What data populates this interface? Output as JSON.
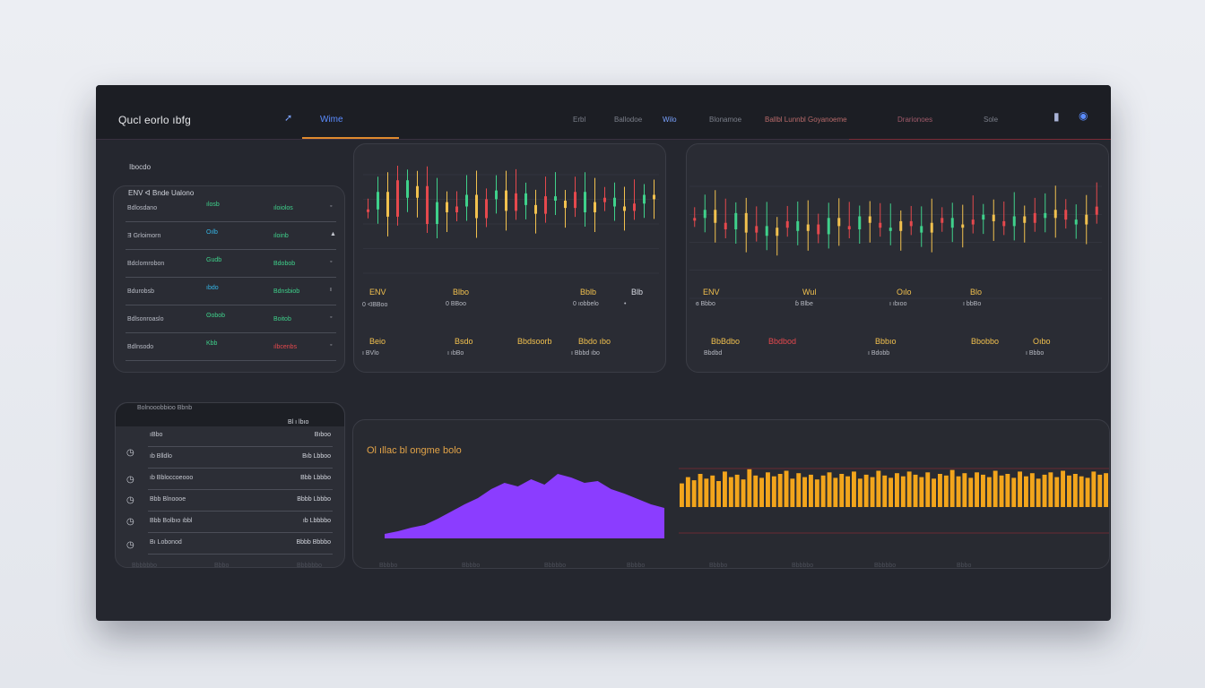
{
  "header": {
    "app_title": "Qucl eorlo ıbfg",
    "active_tab": "Wime",
    "nav_icon": "arrow-icon",
    "links": [
      "Erbl",
      "Ballodoe",
      "Wilo",
      "Blonamoe",
      "Ballbl Lunnbl Goyanoeme",
      "Drarionoes",
      "Sole"
    ],
    "icons": [
      "pin-icon",
      "globe-icon"
    ]
  },
  "watchlist": {
    "section_label": "Ibocdo",
    "header": "ENV ᐊ Bnde Ualono",
    "rows": [
      {
        "name": "Bdlosdano",
        "value": "ılosb",
        "change": "ıloiolos",
        "info": "◦"
      },
      {
        "name": "Ǝ Grloimorn",
        "value": "Oılb",
        "change": "ıloinb",
        "info": "▲"
      },
      {
        "name": "Bdclomrobon",
        "value": "Gudb",
        "change": "Bdobob",
        "info": "◦"
      },
      {
        "name": "Bdurobsb",
        "value": "ıbdo",
        "change": "Bdnsbiob",
        "info": "ı"
      },
      {
        "name": "Bdlsonroaslo",
        "value": "ʘobob",
        "change": "Boitob",
        "info": "◦"
      },
      {
        "name": "Bdlnsodo",
        "value": "Kbb",
        "change": "ılbcenbs",
        "info": "◦"
      }
    ],
    "colors": {
      "positive": "#3fd18b",
      "negative": "#e5484d",
      "neutral": "#35b7e8"
    }
  },
  "chart_left": {
    "stats_top": [
      {
        "label": "ENV",
        "sub": "0 ᐊBBoo",
        "color": "#f2c14e"
      },
      {
        "label": "Blbo",
        "sub": "0 BBoo",
        "color": "#f2c14e"
      },
      {
        "label": "Bblb",
        "sub": "0 ıobbelo",
        "color": "#f2c14e"
      },
      {
        "label": "Blb",
        "sub": "•",
        "color": "#d7dae2"
      }
    ],
    "stats_bottom": [
      {
        "label": "Beio",
        "sub": "ı BVlo",
        "color": "#f2c14e"
      },
      {
        "label": "Bsdo",
        "sub": "ı ıbBo",
        "color": "#f2c14e"
      },
      {
        "label": "Bbdsoorb",
        "sub": "",
        "color": "#f2c14e"
      },
      {
        "label": "Bbdo ıbo",
        "sub": "ı Bbbd ıbo",
        "color": "#f2c14e"
      }
    ]
  },
  "chart_right": {
    "stats_top": [
      {
        "label": "ENV",
        "sub": "ɞ Bbbo",
        "color": "#f2c14e"
      },
      {
        "label": "Wul",
        "sub": "ɓ Blbe",
        "color": "#f2c14e"
      },
      {
        "label": "Oılo",
        "sub": "ı ıbıoo",
        "color": "#f2c14e"
      },
      {
        "label": "Blo",
        "sub": "ı bbBo",
        "color": "#f2c14e"
      }
    ],
    "stats_bottom": [
      {
        "label": "BbBdbo",
        "sub": "Bbdbd",
        "color": "#f2c14e"
      },
      {
        "label": "Bbdbod",
        "sub": "",
        "color": "#e5484d"
      },
      {
        "label": "Bbbıo",
        "sub": "ı Bdobb",
        "color": "#f2c14e"
      },
      {
        "label": "Bbobbo",
        "sub": "",
        "color": "#f2c14e"
      },
      {
        "label": "Oıbo",
        "sub": "ı Bbbo",
        "color": "#f2c14e"
      }
    ]
  },
  "order_book": {
    "header": "Bolnooobbioo Bbnb",
    "top_right": "Bl ı lbıo",
    "rows": [
      {
        "name": "ıBbo",
        "price": "Bıboo"
      },
      {
        "name": "ıb Blldlo",
        "price": "Bıb Lbboo"
      },
      {
        "name": "ıb Bbloccoeooo",
        "price": "Bbb Lbbbo"
      },
      {
        "name": "Bbb Blnoooe",
        "price": "Bbbb Lbbbo"
      },
      {
        "name": "Bbb Bolbıo ıbbl",
        "price": "ıb Lbbbbo"
      },
      {
        "name": "Bı Lobonod",
        "price": "Bbbb Bbbbo"
      }
    ],
    "icons": [
      "clock-icon",
      "clock-icon",
      "clock-icon",
      "clock-icon",
      "clock-icon"
    ]
  },
  "volume": {
    "title": "Ol ıllac bl ongme bolo",
    "axis_labels": [
      "Bbbbbbo",
      "Bbbo",
      "Bbbbbbo",
      "Bbbbo",
      "Bbbbo",
      "Bbbbbo",
      "Bbbbo",
      "Bbbbo",
      "Bbbbbo",
      "Bbbbbo",
      "Bbbo"
    ]
  },
  "chart_data": [
    {
      "type": "candlestick",
      "title": "",
      "values": [
        50,
        62,
        45,
        70,
        58,
        66,
        40,
        55,
        48,
        52,
        60,
        44,
        57,
        63,
        49,
        61,
        53,
        47,
        59,
        56,
        51,
        62,
        48,
        55,
        58,
        52,
        49,
        54,
        60,
        57
      ],
      "colors": [
        "#e5484d",
        "#3fd18b",
        "#f2c14e"
      ]
    },
    {
      "type": "candlestick",
      "title": "",
      "values": [
        55,
        60,
        52,
        48,
        58,
        46,
        50,
        44,
        49,
        53,
        47,
        51,
        45,
        55,
        50,
        48,
        56,
        52,
        49,
        47,
        53,
        50,
        46,
        52,
        55,
        49,
        51,
        54,
        57,
        53,
        50,
        56,
        52,
        58,
        55,
        60,
        54,
        51,
        57,
        62
      ],
      "colors": [
        "#e5484d",
        "#3fd18b",
        "#f2c14e"
      ]
    },
    {
      "type": "area",
      "title": "",
      "values": [
        5,
        8,
        12,
        15,
        22,
        30,
        38,
        45,
        55,
        62,
        58,
        66,
        60,
        72,
        68,
        62,
        64,
        55,
        50,
        44,
        38,
        34
      ],
      "ylim": [
        0,
        80
      ],
      "color": "#8b3dff"
    },
    {
      "type": "bar",
      "title": "",
      "values": [
        30,
        38,
        34,
        42,
        36,
        40,
        33,
        45,
        38,
        41,
        35,
        48,
        40,
        37,
        44,
        39,
        42,
        46,
        36,
        43,
        38,
        41,
        35,
        40,
        44,
        37,
        42,
        39,
        45,
        36,
        41,
        38,
        46,
        40,
        37,
        43,
        39,
        45,
        41,
        38,
        44,
        36,
        42,
        40,
        47,
        39,
        43,
        37,
        44,
        41,
        38,
        46,
        40,
        42,
        37,
        45,
        39,
        43,
        36,
        41,
        44,
        38,
        46,
        40,
        42,
        39,
        37,
        45,
        41,
        43
      ],
      "ylim": [
        0,
        50
      ],
      "color": "#f2a51c"
    }
  ]
}
